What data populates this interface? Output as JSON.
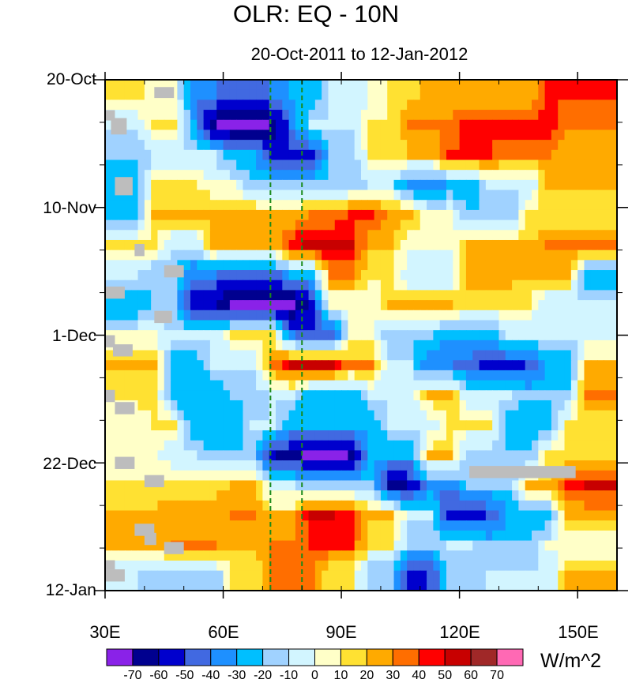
{
  "chart_data": {
    "type": "heatmap",
    "title": "OLR: EQ - 10N",
    "subtitle": "20-Oct-2011 to 12-Jan-2012",
    "xlabel": "",
    "ylabel": "",
    "units": "W/m^2",
    "x_range_deg_east": [
      30,
      160
    ],
    "y_range_days_since_20_Oct_2011": [
      0,
      84
    ],
    "x_ticks": [
      {
        "value": 30,
        "label": "30E"
      },
      {
        "value": 60,
        "label": "60E"
      },
      {
        "value": 90,
        "label": "90E"
      },
      {
        "value": 120,
        "label": "120E"
      },
      {
        "value": 150,
        "label": "150E"
      }
    ],
    "y_ticks": [
      {
        "value": 0,
        "label": "20-Oct"
      },
      {
        "value": 21,
        "label": "10-Nov"
      },
      {
        "value": 42,
        "label": "1-Dec"
      },
      {
        "value": 63,
        "label": "22-Dec"
      },
      {
        "value": 84,
        "label": "12-Jan"
      }
    ],
    "reference_lines_lon": [
      72,
      80
    ],
    "reference_line_color": "#1a8a1a",
    "grid_lon_start": [
      30,
      35,
      40,
      45,
      50,
      55,
      60,
      65,
      70,
      75,
      80,
      85,
      90,
      95,
      100,
      105,
      110,
      115,
      120,
      125,
      130,
      135,
      140,
      145,
      150,
      155
    ],
    "grid_lon_step": 5,
    "grid_day_step": 5,
    "values": [
      [
        15,
        15,
        5,
        5,
        -40,
        -40,
        -50,
        -50,
        -40,
        -30,
        -30,
        -10,
        -10,
        0,
        15,
        15,
        25,
        25,
        20,
        20,
        20,
        20,
        40,
        40,
        40,
        40
      ],
      [
        -10,
        -10,
        10,
        10,
        -30,
        -70,
        -75,
        -75,
        -70,
        -40,
        -10,
        -10,
        -10,
        10,
        10,
        30,
        30,
        30,
        45,
        45,
        45,
        45,
        45,
        30,
        30,
        30
      ],
      [
        -20,
        -20,
        -10,
        -10,
        -10,
        -10,
        -30,
        -30,
        -55,
        -55,
        -55,
        -20,
        -20,
        10,
        10,
        20,
        20,
        40,
        40,
        40,
        30,
        30,
        30,
        20,
        20,
        20
      ],
      [
        -30,
        -30,
        10,
        10,
        10,
        0,
        0,
        -20,
        -20,
        -20,
        -20,
        -20,
        -20,
        -10,
        -10,
        -40,
        -40,
        -30,
        -30,
        -10,
        -10,
        -10,
        20,
        20,
        20,
        20
      ],
      [
        -30,
        -30,
        20,
        20,
        20,
        25,
        25,
        25,
        20,
        20,
        30,
        30,
        40,
        40,
        25,
        25,
        0,
        0,
        -20,
        -20,
        -20,
        10,
        10,
        10,
        10,
        10
      ],
      [
        10,
        10,
        10,
        -10,
        -10,
        20,
        20,
        20,
        20,
        45,
        55,
        55,
        50,
        20,
        20,
        0,
        0,
        0,
        20,
        20,
        20,
        20,
        30,
        30,
        30,
        30
      ],
      [
        -10,
        -10,
        -20,
        -20,
        -40,
        -40,
        -50,
        -50,
        -50,
        -30,
        -30,
        30,
        30,
        10,
        10,
        -10,
        -10,
        -10,
        25,
        25,
        25,
        20,
        20,
        20,
        -30,
        -30
      ],
      [
        -30,
        -30,
        -20,
        -20,
        -55,
        -60,
        -75,
        -75,
        -75,
        -75,
        -55,
        0,
        0,
        0,
        20,
        20,
        20,
        20,
        10,
        10,
        10,
        10,
        -10,
        -10,
        -10,
        -10
      ],
      [
        0,
        0,
        0,
        -10,
        -10,
        -10,
        10,
        10,
        10,
        -40,
        -50,
        -50,
        0,
        0,
        -20,
        -20,
        -20,
        -30,
        -30,
        -30,
        -10,
        -10,
        -10,
        -10,
        -10,
        -10
      ],
      [
        20,
        20,
        20,
        -30,
        -30,
        -10,
        -10,
        -10,
        30,
        50,
        52,
        50,
        30,
        30,
        -10,
        -10,
        -40,
        -40,
        -45,
        -55,
        -55,
        -50,
        -30,
        -30,
        20,
        20
      ],
      [
        15,
        15,
        15,
        -30,
        -30,
        -30,
        -20,
        -20,
        -10,
        -10,
        -30,
        -30,
        -30,
        -10,
        -10,
        -10,
        20,
        20,
        -10,
        -10,
        -10,
        -20,
        -20,
        -20,
        30,
        30
      ],
      [
        0,
        0,
        10,
        10,
        -30,
        -30,
        -30,
        -10,
        -10,
        -30,
        -30,
        -30,
        -30,
        -30,
        -10,
        -10,
        -10,
        10,
        10,
        10,
        -30,
        -30,
        -30,
        10,
        10,
        10
      ],
      [
        0,
        0,
        0,
        -10,
        -10,
        -20,
        -20,
        -20,
        -60,
        -65,
        -75,
        -75,
        -70,
        -30,
        -30,
        -30,
        20,
        20,
        -20,
        -20,
        -20,
        -20,
        10,
        10,
        10,
        10
      ],
      [
        10,
        10,
        10,
        15,
        15,
        15,
        20,
        20,
        -10,
        -10,
        -20,
        -20,
        -20,
        -20,
        -65,
        -60,
        -40,
        -40,
        -20,
        -20,
        -20,
        20,
        20,
        45,
        50,
        50
      ],
      [
        20,
        20,
        25,
        25,
        25,
        25,
        30,
        30,
        20,
        20,
        52,
        50,
        45,
        20,
        20,
        -10,
        -10,
        -55,
        -55,
        -50,
        -30,
        -30,
        -30,
        20,
        20,
        20
      ],
      [
        20,
        20,
        20,
        30,
        30,
        30,
        25,
        25,
        30,
        30,
        40,
        40,
        40,
        10,
        10,
        -20,
        -20,
        -10,
        -10,
        -20,
        -20,
        -20,
        0,
        0,
        0,
        0
      ],
      [
        -10,
        -10,
        -20,
        -20,
        -20,
        -20,
        10,
        10,
        30,
        30,
        30,
        10,
        10,
        -20,
        -20,
        -55,
        -50,
        -20,
        -20,
        -10,
        -10,
        -10,
        -10,
        20,
        20,
        20
      ]
    ],
    "missing_regions": [
      {
        "lon": [
          42.5,
          47.5
        ],
        "day": [
          1.2,
          3
        ]
      },
      {
        "lon": [
          30,
          32.5
        ],
        "day": [
          5,
          6.7
        ]
      },
      {
        "lon": [
          31.5,
          35.5
        ],
        "day": [
          6.3,
          9
        ]
      },
      {
        "lon": [
          32.5,
          37
        ],
        "day": [
          16,
          19
        ]
      },
      {
        "lon": [
          37.5,
          40
        ],
        "day": [
          27,
          29
        ]
      },
      {
        "lon": [
          45,
          50
        ],
        "day": [
          30.5,
          32.5
        ]
      },
      {
        "lon": [
          30,
          35
        ],
        "day": [
          34,
          36
        ]
      },
      {
        "lon": [
          42.5,
          47
        ],
        "day": [
          38,
          40
        ]
      },
      {
        "lon": [
          30,
          32.5
        ],
        "day": [
          42,
          44
        ]
      },
      {
        "lon": [
          32,
          37
        ],
        "day": [
          43.5,
          45.5
        ]
      },
      {
        "lon": [
          30,
          32.5
        ],
        "day": [
          51,
          53
        ]
      },
      {
        "lon": [
          32.5,
          37.5
        ],
        "day": [
          53,
          55
        ]
      },
      {
        "lon": [
          32.5,
          37.5
        ],
        "day": [
          62,
          64
        ]
      },
      {
        "lon": [
          40,
          45
        ],
        "day": [
          65,
          67
        ]
      },
      {
        "lon": [
          122.5,
          149.5
        ],
        "day": [
          63.5,
          65.5
        ]
      },
      {
        "lon": [
          37.5,
          42.5
        ],
        "day": [
          73,
          75
        ]
      },
      {
        "lon": [
          40,
          43
        ],
        "day": [
          74.5,
          76.5
        ]
      },
      {
        "lon": [
          45,
          50
        ],
        "day": [
          76,
          78
        ]
      },
      {
        "lon": [
          30,
          32.5
        ],
        "day": [
          79,
          80.5
        ]
      },
      {
        "lon": [
          30,
          35
        ],
        "day": [
          80.5,
          82.5
        ]
      }
    ],
    "missing_color": "#bdbdbd",
    "colorbar": {
      "labels": [
        "-70",
        "-60",
        "-50",
        "-40",
        "-30",
        "-20",
        "-10",
        "0",
        "10",
        "20",
        "30",
        "40",
        "50",
        "60",
        "70"
      ],
      "levels": [
        -70,
        -60,
        -50,
        -40,
        -30,
        -20,
        -10,
        0,
        10,
        20,
        30,
        40,
        50,
        60,
        70
      ],
      "colors": [
        "#8a22e8",
        "#00008f",
        "#0000cd",
        "#4169e1",
        "#1e90ff",
        "#00bfff",
        "#a0d2ff",
        "#d2f5ff",
        "#ffffc8",
        "#ffe132",
        "#ffaa00",
        "#ff6e00",
        "#ff0000",
        "#c80000",
        "#a02828",
        "#ff69b4"
      ]
    }
  }
}
